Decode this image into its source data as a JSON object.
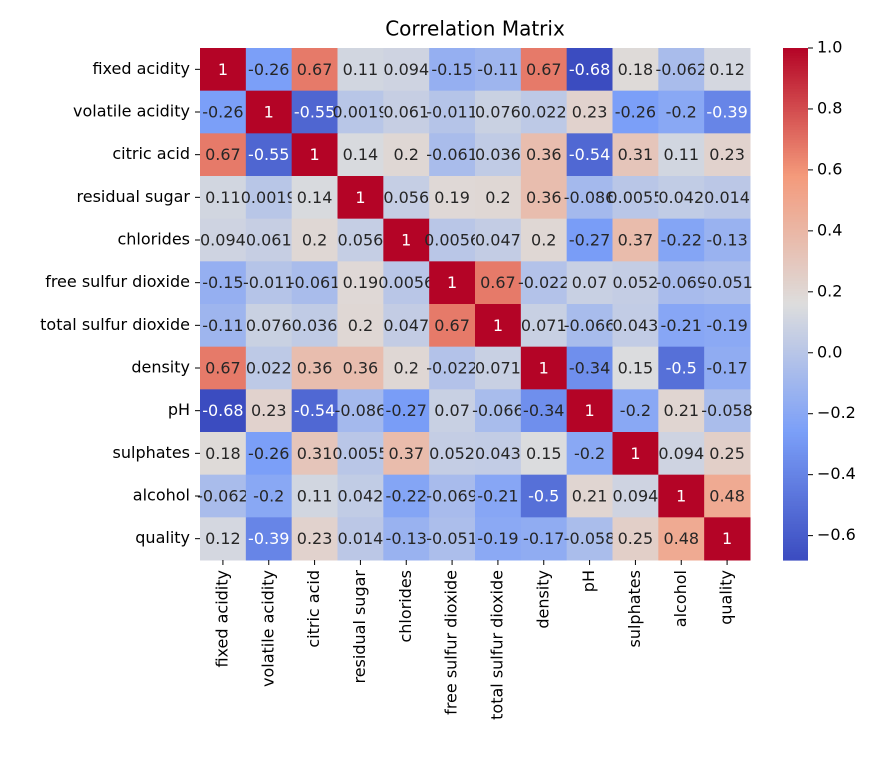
{
  "chart_data": {
    "type": "heatmap",
    "title": "Correlation Matrix",
    "x": [
      "fixed acidity",
      "volatile acidity",
      "citric acid",
      "residual sugar",
      "chlorides",
      "free sulfur dioxide",
      "total sulfur dioxide",
      "density",
      "pH",
      "sulphates",
      "alcohol",
      "quality"
    ],
    "y": [
      "fixed acidity",
      "volatile acidity",
      "citric acid",
      "residual sugar",
      "chlorides",
      "free sulfur dioxide",
      "total sulfur dioxide",
      "density",
      "pH",
      "sulphates",
      "alcohol",
      "quality"
    ],
    "values": [
      [
        1,
        -0.26,
        0.67,
        0.11,
        0.094,
        -0.15,
        -0.11,
        0.67,
        -0.68,
        0.18,
        -0.062,
        0.12
      ],
      [
        -0.26,
        1,
        -0.55,
        0.0019,
        0.061,
        -0.011,
        0.076,
        0.022,
        0.23,
        -0.26,
        -0.2,
        -0.39
      ],
      [
        0.67,
        -0.55,
        1,
        0.14,
        0.2,
        -0.061,
        0.036,
        0.36,
        -0.54,
        0.31,
        0.11,
        0.23
      ],
      [
        0.11,
        0.0019,
        0.14,
        1,
        0.056,
        0.19,
        0.2,
        0.36,
        -0.086,
        0.0055,
        0.042,
        0.014
      ],
      [
        0.094,
        0.061,
        0.2,
        0.056,
        1,
        0.0056,
        0.047,
        0.2,
        -0.27,
        0.37,
        -0.22,
        -0.13
      ],
      [
        -0.15,
        -0.011,
        -0.061,
        0.19,
        0.0056,
        1,
        0.67,
        -0.022,
        0.07,
        0.052,
        -0.069,
        -0.051
      ],
      [
        -0.11,
        0.076,
        0.036,
        0.2,
        0.047,
        0.67,
        1,
        0.071,
        -0.066,
        0.043,
        -0.21,
        -0.19
      ],
      [
        0.67,
        0.022,
        0.36,
        0.36,
        0.2,
        -0.022,
        0.071,
        1,
        -0.34,
        0.15,
        -0.5,
        -0.17
      ],
      [
        -0.68,
        0.23,
        -0.54,
        -0.086,
        -0.27,
        0.07,
        -0.066,
        -0.34,
        1,
        -0.2,
        0.21,
        -0.058
      ],
      [
        0.18,
        -0.26,
        0.31,
        0.0055,
        0.37,
        0.052,
        0.043,
        0.15,
        -0.2,
        1,
        0.094,
        0.25
      ],
      [
        -0.062,
        -0.2,
        0.11,
        0.042,
        -0.22,
        -0.069,
        -0.21,
        -0.5,
        0.21,
        0.094,
        1,
        0.48
      ],
      [
        0.12,
        -0.39,
        0.23,
        0.014,
        -0.13,
        -0.051,
        -0.19,
        -0.17,
        -0.058,
        0.25,
        0.48,
        1
      ]
    ],
    "colormap": "coolwarm",
    "zlim": [
      -0.68,
      1
    ],
    "zticks": [
      {
        "value": 1.0,
        "label": "1.0"
      },
      0.8,
      0.6,
      0.4,
      0.2,
      {
        "value": 0.0,
        "label": "0.0"
      },
      {
        "value": -0.2,
        "label": "−0.2"
      },
      {
        "value": -0.4,
        "label": "−0.4"
      },
      {
        "value": -0.6,
        "label": "−0.6"
      }
    ]
  }
}
